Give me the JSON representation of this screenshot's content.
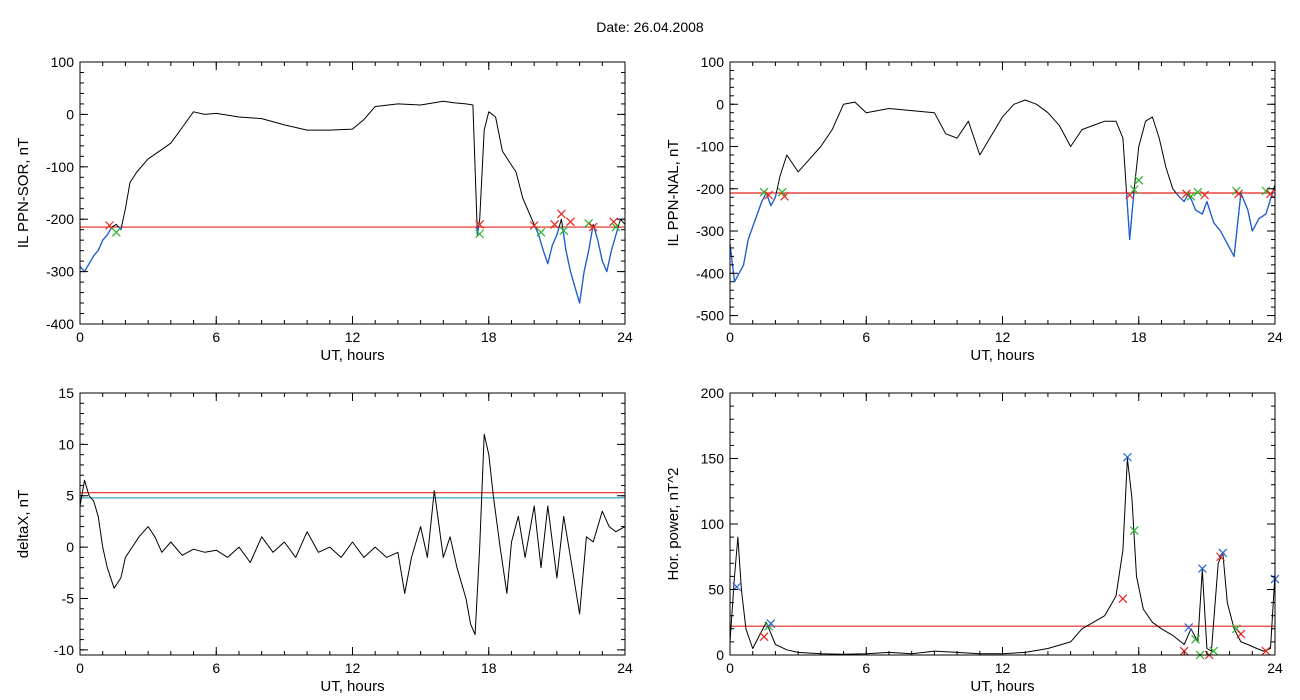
{
  "page": {
    "title": "Date:  26.04.2008"
  },
  "colors": {
    "frame": "#000000",
    "curve": "#000000",
    "below_threshold": "#1f5fd6",
    "threshold": "#e8231a",
    "threshold2": "#1aa3c4",
    "marker_red": "#e8231a",
    "marker_green": "#27b32a",
    "marker_blue": "#2666d8"
  },
  "chart_data": [
    {
      "id": "ppn-sor",
      "type": "line",
      "title": "",
      "xlabel": "UT, hours",
      "ylabel": "IL PPN-SOR, nT",
      "xlim": [
        0,
        24
      ],
      "ylim": [
        -400,
        100
      ],
      "xticks": [
        0,
        6,
        12,
        18,
        24
      ],
      "yticks": [
        -400,
        -300,
        -200,
        -100,
        0,
        100
      ],
      "grid": false,
      "threshold": [
        {
          "y": -215,
          "color": "#e8231a"
        }
      ],
      "below_color": "#1f5fd6",
      "series": [
        {
          "x": [
            0,
            0.2,
            0.4,
            0.6,
            0.8,
            1.0,
            1.2,
            1.4,
            1.6,
            1.8,
            2.0,
            2.2,
            2.5,
            3.0,
            3.5,
            4.0,
            4.5,
            5.0,
            5.5,
            6.0,
            7.0,
            8.0,
            9.0,
            10.0,
            11.0,
            12.0,
            12.5,
            13.0,
            14.0,
            15.0,
            16.0,
            16.5,
            17.0,
            17.3,
            17.5,
            17.6,
            17.8,
            18.0,
            18.3,
            18.6,
            18.9,
            19.2,
            19.5,
            19.8,
            20.0,
            20.2,
            20.4,
            20.6,
            20.8,
            21.0,
            21.2,
            21.4,
            21.6,
            21.8,
            22.0,
            22.2,
            22.4,
            22.6,
            22.8,
            23.0,
            23.2,
            23.4,
            23.6,
            23.8,
            24.0
          ],
          "y": [
            -290,
            -300,
            -285,
            -270,
            -260,
            -240,
            -230,
            -215,
            -210,
            -220,
            -180,
            -130,
            -110,
            -85,
            -70,
            -55,
            -25,
            5,
            0,
            2,
            -5,
            -8,
            -20,
            -30,
            -30,
            -28,
            -10,
            15,
            20,
            18,
            25,
            22,
            20,
            18,
            -230,
            -200,
            -30,
            5,
            -5,
            -70,
            -90,
            -110,
            -160,
            -190,
            -210,
            -230,
            -260,
            -285,
            -250,
            -230,
            -200,
            -260,
            -300,
            -330,
            -360,
            -300,
            -260,
            -210,
            -240,
            -280,
            -300,
            -260,
            -230,
            -200,
            -210
          ]
        }
      ],
      "markers": [
        {
          "x": 1.3,
          "y": -212,
          "color": "#e8231a"
        },
        {
          "x": 1.6,
          "y": -225,
          "color": "#27b32a"
        },
        {
          "x": 17.6,
          "y": -210,
          "color": "#e8231a"
        },
        {
          "x": 17.6,
          "y": -228,
          "color": "#27b32a"
        },
        {
          "x": 20.0,
          "y": -212,
          "color": "#e8231a"
        },
        {
          "x": 20.3,
          "y": -225,
          "color": "#27b32a"
        },
        {
          "x": 20.9,
          "y": -210,
          "color": "#e8231a"
        },
        {
          "x": 21.2,
          "y": -190,
          "color": "#e8231a"
        },
        {
          "x": 21.3,
          "y": -222,
          "color": "#27b32a"
        },
        {
          "x": 21.6,
          "y": -205,
          "color": "#e8231a"
        },
        {
          "x": 22.4,
          "y": -208,
          "color": "#27b32a"
        },
        {
          "x": 22.6,
          "y": -215,
          "color": "#e8231a"
        },
        {
          "x": 23.5,
          "y": -205,
          "color": "#e8231a"
        },
        {
          "x": 23.6,
          "y": -215,
          "color": "#27b32a"
        }
      ]
    },
    {
      "id": "ppn-nal",
      "type": "line",
      "title": "",
      "xlabel": "UT, hours",
      "ylabel": "IL PPN-NAL, nT",
      "xlim": [
        0,
        24
      ],
      "ylim": [
        -520,
        100
      ],
      "xticks": [
        0,
        6,
        12,
        18,
        24
      ],
      "yticks": [
        -500,
        -400,
        -300,
        -200,
        -100,
        0,
        100
      ],
      "grid": false,
      "threshold": [
        {
          "y": -210,
          "color": "#e8231a"
        }
      ],
      "below_color": "#1f5fd6",
      "series": [
        {
          "x": [
            0,
            0.2,
            0.4,
            0.6,
            0.8,
            1.0,
            1.2,
            1.4,
            1.6,
            1.8,
            2.0,
            2.2,
            2.5,
            3.0,
            3.5,
            4.0,
            4.5,
            5.0,
            5.5,
            6.0,
            7.0,
            8.0,
            9.0,
            9.5,
            10.0,
            10.5,
            11.0,
            12.0,
            12.5,
            13.0,
            13.5,
            14.0,
            14.5,
            15.0,
            15.5,
            16.0,
            16.5,
            17.0,
            17.3,
            17.6,
            17.8,
            18.0,
            18.3,
            18.6,
            18.9,
            19.2,
            19.5,
            19.8,
            20.0,
            20.2,
            20.5,
            20.8,
            21.0,
            21.3,
            21.6,
            21.9,
            22.2,
            22.5,
            22.8,
            23.0,
            23.3,
            23.6,
            24.0
          ],
          "y": [
            -330,
            -420,
            -400,
            -380,
            -320,
            -290,
            -260,
            -230,
            -210,
            -240,
            -220,
            -170,
            -120,
            -160,
            -130,
            -100,
            -60,
            0,
            5,
            -20,
            -10,
            -15,
            -20,
            -70,
            -80,
            -40,
            -120,
            -30,
            0,
            10,
            0,
            -20,
            -50,
            -100,
            -60,
            -50,
            -40,
            -40,
            -80,
            -320,
            -200,
            -100,
            -40,
            -30,
            -80,
            -150,
            -200,
            -220,
            -230,
            -210,
            -250,
            -260,
            -230,
            -280,
            -300,
            -330,
            -360,
            -210,
            -250,
            -300,
            -270,
            -260,
            -190
          ]
        }
      ],
      "markers": [
        {
          "x": 1.5,
          "y": -208,
          "color": "#27b32a"
        },
        {
          "x": 1.7,
          "y": -215,
          "color": "#e8231a"
        },
        {
          "x": 2.3,
          "y": -208,
          "color": "#27b32a"
        },
        {
          "x": 2.4,
          "y": -218,
          "color": "#e8231a"
        },
        {
          "x": 17.6,
          "y": -215,
          "color": "#e8231a"
        },
        {
          "x": 17.8,
          "y": -202,
          "color": "#27b32a"
        },
        {
          "x": 18.0,
          "y": -180,
          "color": "#27b32a"
        },
        {
          "x": 20.1,
          "y": -212,
          "color": "#e8231a"
        },
        {
          "x": 20.3,
          "y": -218,
          "color": "#27b32a"
        },
        {
          "x": 20.6,
          "y": -208,
          "color": "#27b32a"
        },
        {
          "x": 20.9,
          "y": -215,
          "color": "#e8231a"
        },
        {
          "x": 22.3,
          "y": -205,
          "color": "#27b32a"
        },
        {
          "x": 22.4,
          "y": -212,
          "color": "#e8231a"
        },
        {
          "x": 23.6,
          "y": -205,
          "color": "#27b32a"
        },
        {
          "x": 23.8,
          "y": -212,
          "color": "#e8231a"
        }
      ]
    },
    {
      "id": "deltax",
      "type": "line",
      "title": "",
      "xlabel": "UT, hours",
      "ylabel": "deltaX, nT",
      "xlim": [
        0,
        24
      ],
      "ylim": [
        -10.5,
        15
      ],
      "xticks": [
        0,
        6,
        12,
        18,
        24
      ],
      "yticks": [
        -10,
        -5,
        0,
        5,
        10,
        15
      ],
      "grid": false,
      "threshold": [
        {
          "y": 5.3,
          "color": "#e8231a"
        },
        {
          "y": 4.8,
          "color": "#1aa3c4"
        }
      ],
      "series": [
        {
          "x": [
            0,
            0.2,
            0.4,
            0.6,
            0.8,
            1.0,
            1.2,
            1.5,
            1.8,
            2.0,
            2.3,
            2.6,
            3.0,
            3.3,
            3.6,
            4.0,
            4.5,
            5.0,
            5.5,
            6.0,
            6.5,
            7.0,
            7.5,
            8.0,
            8.5,
            9.0,
            9.5,
            10.0,
            10.5,
            11.0,
            11.5,
            12.0,
            12.5,
            13.0,
            13.5,
            14.0,
            14.3,
            14.6,
            15.0,
            15.3,
            15.6,
            16.0,
            16.3,
            16.6,
            17.0,
            17.2,
            17.4,
            17.6,
            17.8,
            18.0,
            18.2,
            18.5,
            18.8,
            19.0,
            19.3,
            19.6,
            20.0,
            20.3,
            20.6,
            21.0,
            21.3,
            21.6,
            22.0,
            22.3,
            22.6,
            23.0,
            23.3,
            23.6,
            24.0
          ],
          "y": [
            4,
            6.5,
            5,
            4.5,
            3,
            0,
            -2,
            -4,
            -3,
            -1,
            0,
            1,
            2,
            1,
            -0.5,
            0.5,
            -0.8,
            -0.2,
            -0.5,
            -0.3,
            -1,
            0,
            -1.5,
            1,
            -0.5,
            0.5,
            -1,
            1.5,
            -0.5,
            0,
            -1,
            0.5,
            -1,
            0,
            -1,
            -0.5,
            -4.5,
            -1,
            2,
            -1,
            5.5,
            -1,
            1,
            -2,
            -5,
            -7.5,
            -8.5,
            0,
            11,
            9,
            5,
            0,
            -4.5,
            0.5,
            3,
            -1,
            4,
            -2,
            4,
            -3,
            3,
            -1,
            -6.5,
            1,
            0.5,
            3.5,
            2,
            1.5,
            2
          ]
        }
      ],
      "markers": []
    },
    {
      "id": "hor-power",
      "type": "line",
      "title": "",
      "xlabel": "UT, hours",
      "ylabel": "Hor. power, nT^2",
      "xlim": [
        0,
        24
      ],
      "ylim": [
        0,
        200
      ],
      "xticks": [
        0,
        6,
        12,
        18,
        24
      ],
      "yticks": [
        0,
        50,
        100,
        150,
        200
      ],
      "grid": false,
      "threshold": [
        {
          "y": 22,
          "color": "#e8231a"
        }
      ],
      "series": [
        {
          "x": [
            0,
            0.2,
            0.35,
            0.5,
            0.7,
            1.0,
            1.3,
            1.6,
            2.0,
            2.5,
            3.0,
            4.0,
            5.0,
            6.0,
            7.0,
            8.0,
            9.0,
            10.0,
            11.0,
            12.0,
            13.0,
            14.0,
            15.0,
            15.5,
            16.0,
            16.5,
            17.0,
            17.3,
            17.5,
            17.7,
            17.9,
            18.2,
            18.6,
            19.0,
            19.5,
            20.0,
            20.3,
            20.6,
            20.8,
            21.0,
            21.2,
            21.5,
            21.7,
            21.9,
            22.2,
            22.5,
            22.8,
            23.2,
            23.5,
            23.8,
            24.0
          ],
          "y": [
            10,
            60,
            90,
            50,
            20,
            5,
            15,
            25,
            8,
            4,
            2,
            1,
            0.5,
            1,
            2,
            1,
            3,
            2,
            1,
            1,
            2,
            5,
            10,
            20,
            25,
            30,
            45,
            80,
            150,
            120,
            60,
            35,
            25,
            20,
            15,
            8,
            20,
            10,
            65,
            5,
            3,
            70,
            78,
            40,
            20,
            10,
            8,
            5,
            3,
            5,
            62
          ]
        }
      ],
      "markers": [
        {
          "x": 0.3,
          "y": 52,
          "color": "#2666d8"
        },
        {
          "x": 1.5,
          "y": 14,
          "color": "#e8231a"
        },
        {
          "x": 1.7,
          "y": 22,
          "color": "#27b32a"
        },
        {
          "x": 1.8,
          "y": 24,
          "color": "#2666d8"
        },
        {
          "x": 17.3,
          "y": 43,
          "color": "#e8231a"
        },
        {
          "x": 17.5,
          "y": 151,
          "color": "#2666d8"
        },
        {
          "x": 17.8,
          "y": 95,
          "color": "#27b32a"
        },
        {
          "x": 20.0,
          "y": 3,
          "color": "#e8231a"
        },
        {
          "x": 20.2,
          "y": 21,
          "color": "#2666d8"
        },
        {
          "x": 20.5,
          "y": 12,
          "color": "#27b32a"
        },
        {
          "x": 20.7,
          "y": 0,
          "color": "#27b32a"
        },
        {
          "x": 20.8,
          "y": 66,
          "color": "#2666d8"
        },
        {
          "x": 21.1,
          "y": 0,
          "color": "#e8231a"
        },
        {
          "x": 21.3,
          "y": 3,
          "color": "#27b32a"
        },
        {
          "x": 21.6,
          "y": 75,
          "color": "#e8231a"
        },
        {
          "x": 21.7,
          "y": 78,
          "color": "#2666d8"
        },
        {
          "x": 22.3,
          "y": 20,
          "color": "#27b32a"
        },
        {
          "x": 22.5,
          "y": 16,
          "color": "#e8231a"
        },
        {
          "x": 23.6,
          "y": 3,
          "color": "#e8231a"
        },
        {
          "x": 24.0,
          "y": 58,
          "color": "#2666d8"
        }
      ]
    }
  ]
}
